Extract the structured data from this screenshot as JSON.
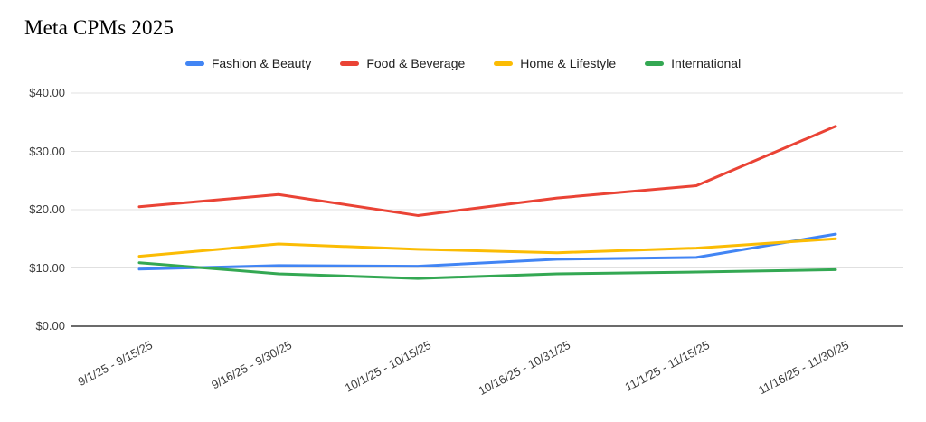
{
  "chart_data": {
    "type": "line",
    "title": "Meta CPMs 2025",
    "categories": [
      "9/1/25 - 9/15/25",
      "9/16/25 - 9/30/25",
      "10/1/25 - 10/15/25",
      "10/16/25 - 10/31/25",
      "11/1/25 - 11/15/25",
      "11/16/25 - 11/30/25"
    ],
    "series": [
      {
        "name": "Fashion & Beauty",
        "color": "#4285F4",
        "values": [
          9.8,
          10.4,
          10.3,
          11.5,
          11.8,
          15.8
        ]
      },
      {
        "name": "Food & Beverage",
        "color": "#EA4335",
        "values": [
          20.5,
          22.6,
          19.0,
          22.0,
          24.1,
          34.3
        ]
      },
      {
        "name": "Home & Lifestyle",
        "color": "#FBBC04",
        "values": [
          12.0,
          14.1,
          13.2,
          12.6,
          13.4,
          15.0
        ]
      },
      {
        "name": "International",
        "color": "#34A853",
        "values": [
          10.9,
          9.0,
          8.2,
          9.0,
          9.3,
          9.7
        ]
      }
    ],
    "y_axis": {
      "min": 0,
      "max": 40,
      "tick_step": 10,
      "tick_values": [
        0,
        10,
        20,
        30,
        40
      ],
      "tick_labels": [
        "$0.00",
        "$10.00",
        "$20.00",
        "$30.00",
        "$40.00"
      ]
    },
    "grid": true,
    "legend_position": "top",
    "background_color": "#ffffff",
    "grid_color": "#e0e0e0",
    "axis_line_color": "#6b6b6b",
    "xlabel": "",
    "ylabel": ""
  }
}
